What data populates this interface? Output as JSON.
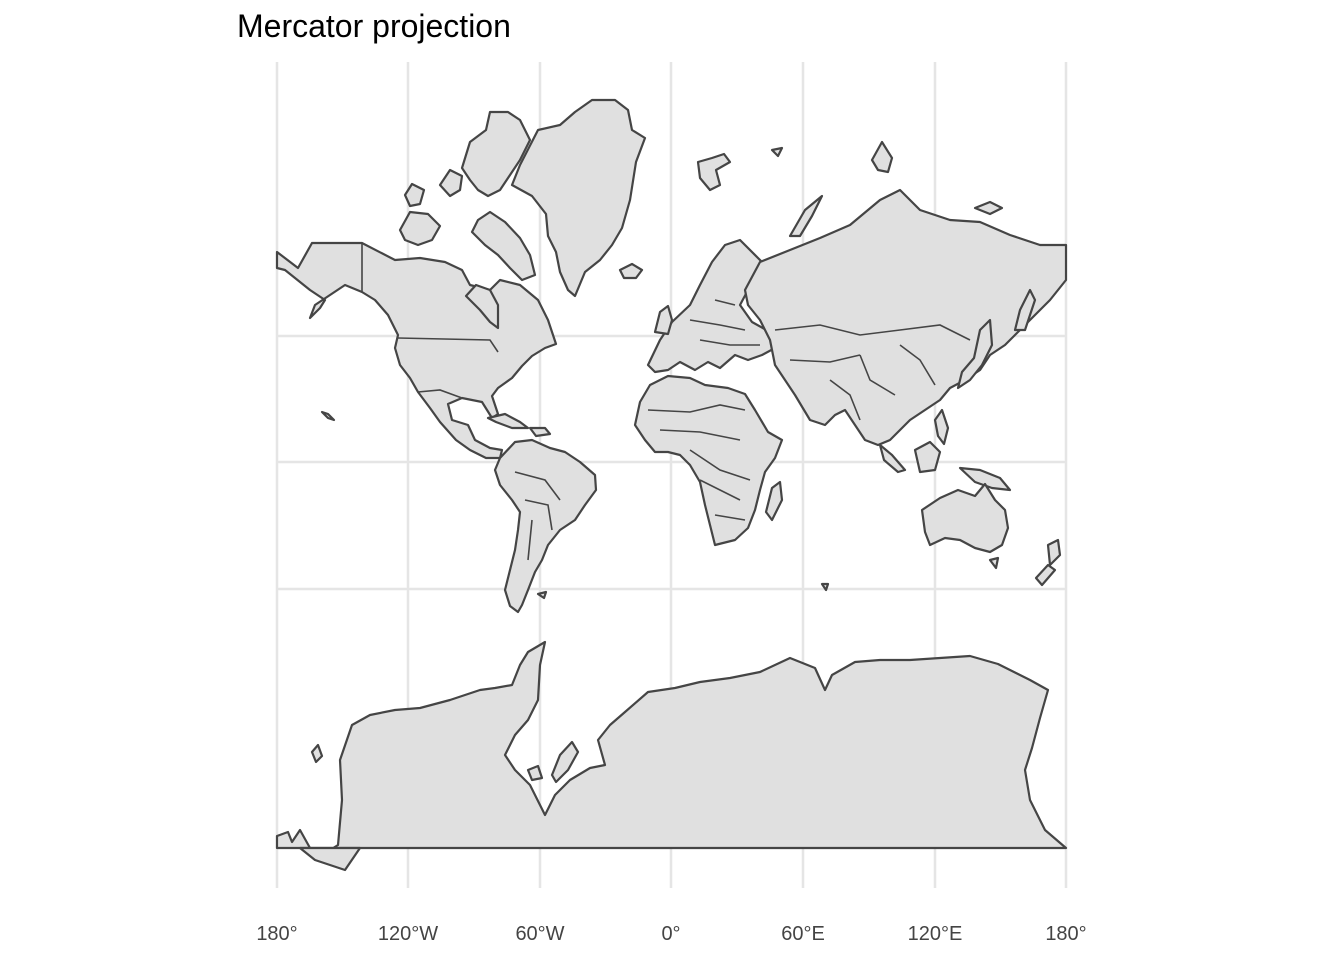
{
  "map": {
    "title": "Mercator projection",
    "projection": "Mercator",
    "longitude_ticks": [
      "180°",
      "120°W",
      "60°W",
      "0°",
      "60°E",
      "120°E",
      "180°"
    ],
    "longitude_values": [
      -180,
      -120,
      -60,
      0,
      60,
      120,
      180
    ],
    "land_fill": "#e0e0e0",
    "land_outline": "#454545",
    "grid_color": "#e5e5e5",
    "background": "#ffffff"
  }
}
